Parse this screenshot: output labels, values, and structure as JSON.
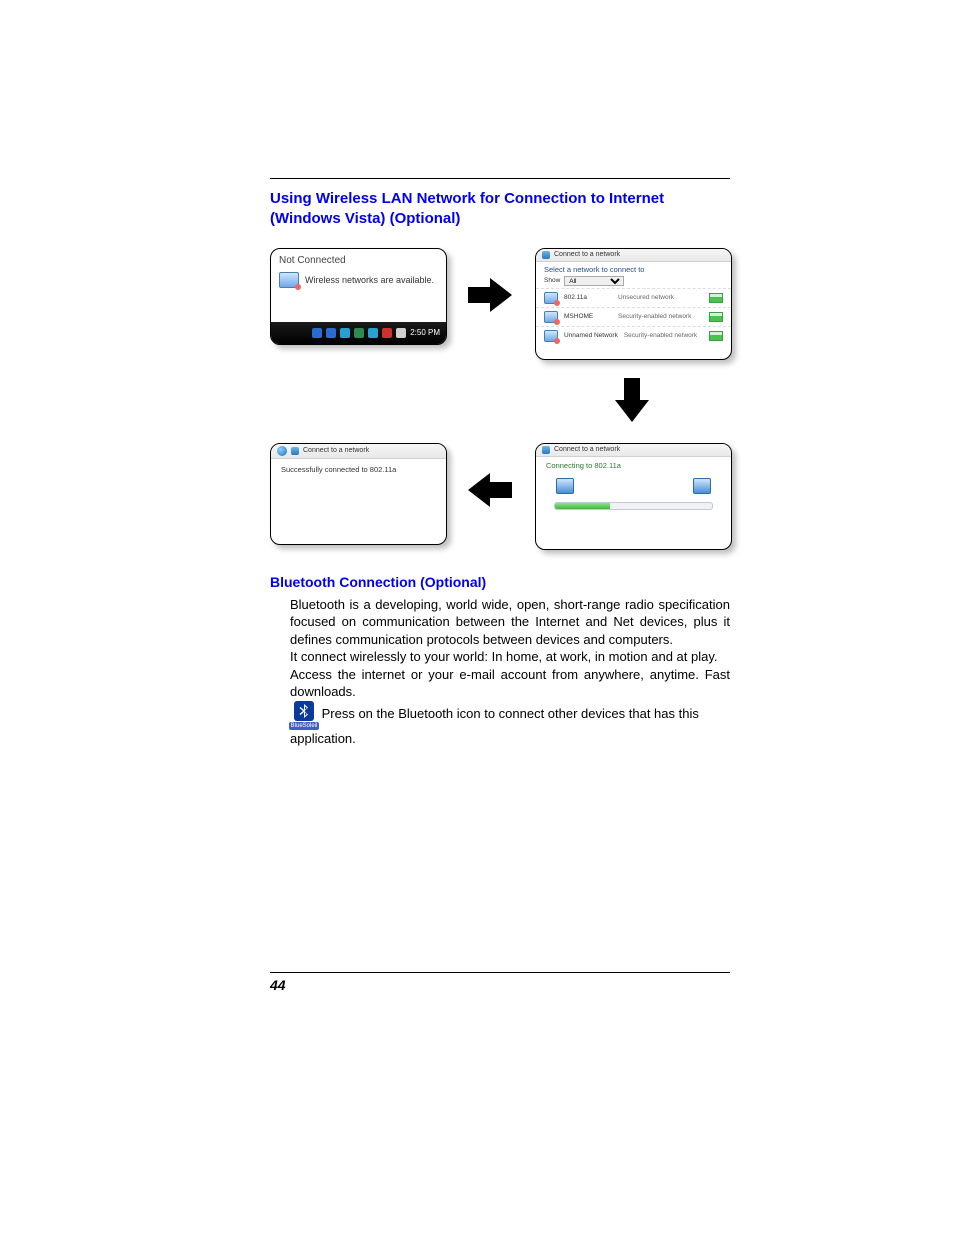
{
  "heading1": "Using Wireless LAN Network for Connection to Internet (Windows Vista) (Optional)",
  "heading2": "Bluetooth Connection (Optional)",
  "page_number": "44",
  "panel1": {
    "title": "Not Connected",
    "message": "Wireless networks are available.",
    "time": "2:50 PM",
    "tray_colors": [
      "#2a6cd0",
      "#2a6cd0",
      "#2aa0d0",
      "#2a8c50",
      "#2aa0d0",
      "#d03030",
      "#d0d0d0"
    ]
  },
  "panel2": {
    "title": "Connect to a network",
    "subtitle": "Select a network to connect to",
    "show_label": "Show",
    "show_value": "All",
    "networks": [
      {
        "name": "802.11a",
        "desc": "Unsecured network"
      },
      {
        "name": "MSHOME",
        "desc": "Security-enabled network"
      },
      {
        "name": "Unnamed Network",
        "desc": "Security-enabled network"
      }
    ]
  },
  "panel3": {
    "title": "Connect to a network",
    "message": "Connecting to 802.11a",
    "progress_pct": 35,
    "progress_fill": "#46b53e",
    "progress_bg": "#f0f2f5"
  },
  "panel4": {
    "title": "Connect to a network",
    "message": "Successfully connected to 802.11a"
  },
  "arrows": {
    "color": "#000000"
  },
  "bluetooth": {
    "para1": "Bluetooth is a developing, world wide, open, short-range radio specification focused on communication between the Internet and Net devices, plus it defines communication protocols between devices and computers.",
    "para2": "It connect wirelessly to your world: In home, at work, in motion and at play.",
    "para3": "Access the internet or your e-mail account from anywhere, anytime. Fast downloads.",
    "icon_label": "BlueSoleil",
    "para4_after_icon": " Press on the Bluetooth icon to connect other devices that has this application."
  }
}
